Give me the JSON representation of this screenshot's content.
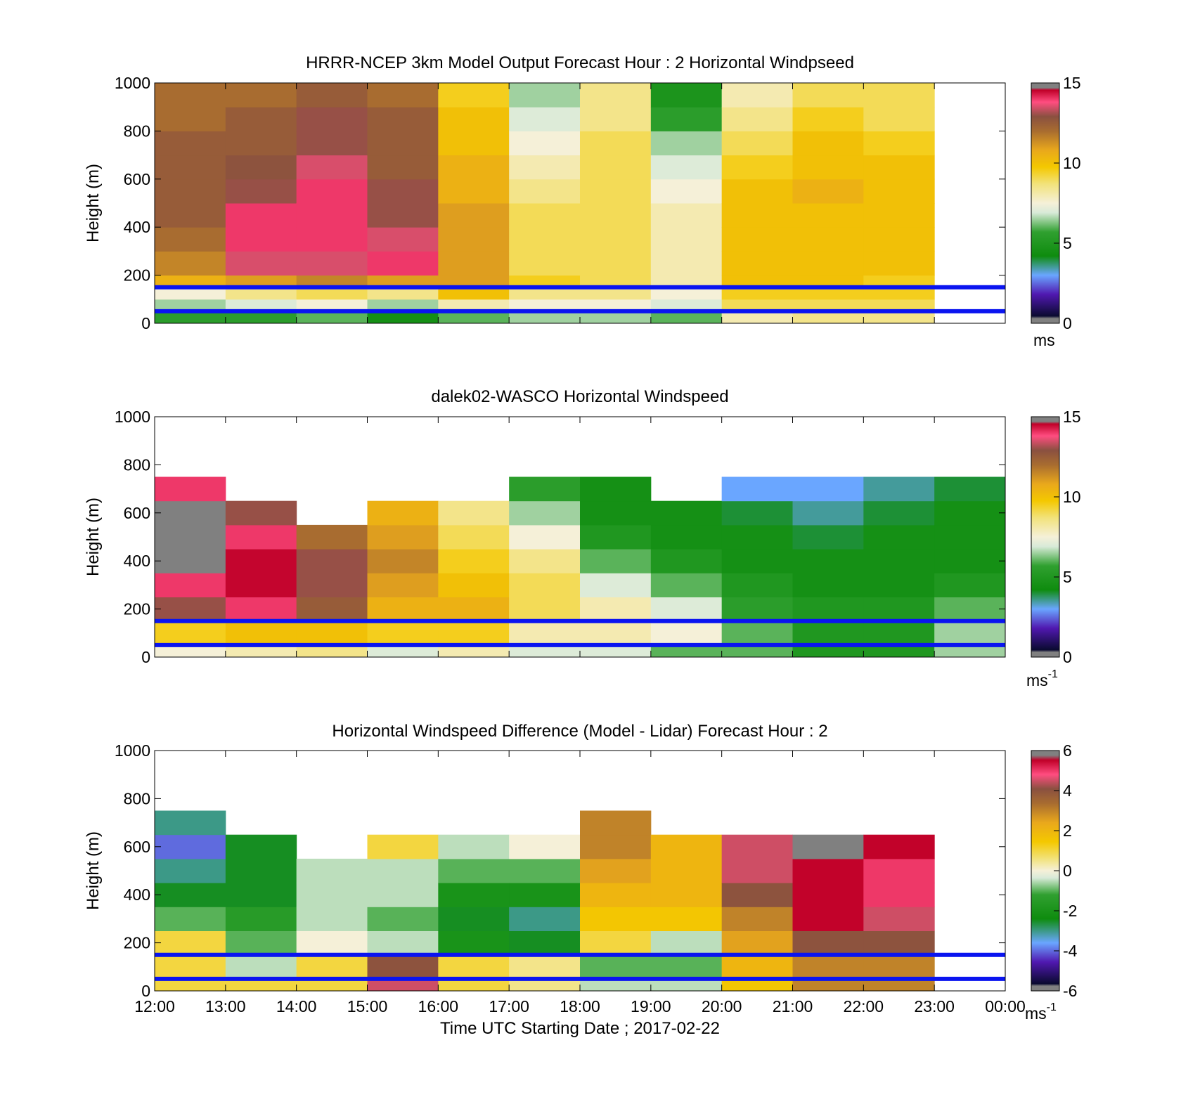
{
  "figure": {
    "xlabel": "Time UTC  Starting Date ; 2017-02-22",
    "x_ticks": [
      "12:00",
      "13:00",
      "14:00",
      "15:00",
      "16:00",
      "17:00",
      "18:00",
      "19:00",
      "20:00",
      "21:00",
      "22:00",
      "23:00",
      "00:00"
    ]
  },
  "chart_data": [
    {
      "type": "heatmap",
      "title": "HRRR-NCEP 3km Model Output   Forecast Hour : 2 Horizontal Windpseed",
      "ylabel": "Height (m)",
      "xlabel": "",
      "ylim": [
        0,
        1000
      ],
      "y_ticks": [
        "0",
        "200",
        "400",
        "600",
        "800",
        "1000"
      ],
      "colorbar": {
        "ticks": [
          "0",
          "5",
          "10",
          "15"
        ],
        "range": [
          0,
          15
        ],
        "unit": "ms",
        "unit_sup": ""
      },
      "reference_lines_m": [
        150,
        50
      ],
      "reference_line_color": "#0a14f0",
      "hours": [
        "12:00",
        "13:00",
        "14:00",
        "15:00",
        "16:00",
        "17:00",
        "18:00",
        "19:00",
        "20:00",
        "21:00",
        "22:00"
      ],
      "heights_m": [
        50,
        100,
        150,
        200,
        300,
        400,
        500,
        600,
        700,
        800,
        900,
        1000
      ],
      "values": [
        [
          5.5,
          6.5,
          7.5,
          10.5,
          11.5,
          12.0,
          12.5,
          12.5,
          12.5,
          12.5,
          12.0,
          12.0
        ],
        [
          5.5,
          7.0,
          8.5,
          11.0,
          13.5,
          14.0,
          14.0,
          13.0,
          12.8,
          12.5,
          12.5,
          12.0
        ],
        [
          6.0,
          7.5,
          9.0,
          11.5,
          13.5,
          14.0,
          14.0,
          14.0,
          13.5,
          13.0,
          13.0,
          12.5
        ],
        [
          4.5,
          6.5,
          8.5,
          11.0,
          14.0,
          13.5,
          13.0,
          13.0,
          12.5,
          12.5,
          12.5,
          12.0
        ],
        [
          6.0,
          8.0,
          10.0,
          11.0,
          11.0,
          11.0,
          11.0,
          10.5,
          10.5,
          10.0,
          10.0,
          9.5
        ],
        [
          6.5,
          7.5,
          8.5,
          9.5,
          9.0,
          9.0,
          9.0,
          8.5,
          8.0,
          7.5,
          7.0,
          6.5
        ],
        [
          6.5,
          7.5,
          8.5,
          9.0,
          9.0,
          9.0,
          9.0,
          9.0,
          9.0,
          9.0,
          8.5,
          8.5
        ],
        [
          6.0,
          7.0,
          7.5,
          8.0,
          8.0,
          8.0,
          8.0,
          7.5,
          7.0,
          6.5,
          5.5,
          4.8
        ],
        [
          8.0,
          9.0,
          9.5,
          10.0,
          10.0,
          10.0,
          10.0,
          10.0,
          9.5,
          9.0,
          8.5,
          8.0
        ],
        [
          8.5,
          9.0,
          9.5,
          10.0,
          10.0,
          10.0,
          10.0,
          10.5,
          10.0,
          10.0,
          9.5,
          9.0
        ],
        [
          8.5,
          9.0,
          9.5,
          9.5,
          10.0,
          10.0,
          10.0,
          10.0,
          10.0,
          9.5,
          9.0,
          9.0
        ]
      ]
    },
    {
      "type": "heatmap",
      "title": "dalek02-WASCO  Horizontal Windspeed",
      "ylabel": "Height (m)",
      "xlabel": "",
      "ylim": [
        0,
        1000
      ],
      "y_ticks": [
        "0",
        "200",
        "400",
        "600",
        "800",
        "1000"
      ],
      "colorbar": {
        "ticks": [
          "0",
          "5",
          "10",
          "15"
        ],
        "range": [
          0,
          15
        ],
        "unit": "ms",
        "unit_sup": "-1"
      },
      "reference_lines_m": [
        150,
        50
      ],
      "reference_line_color": "#0a14f0",
      "hours": [
        "12:00",
        "13:00",
        "14:00",
        "15:00",
        "16:00",
        "17:00",
        "18:00",
        "19:00",
        "20:00",
        "21:00",
        "22:00",
        "23:00"
      ],
      "heights_m": [
        50,
        150,
        250,
        350,
        450,
        550,
        650,
        750
      ],
      "values": [
        [
          7.5,
          9.5,
          13.0,
          14.0,
          15.5,
          16.0,
          16.0,
          14.0
        ],
        [
          8.0,
          10.0,
          14.0,
          14.5,
          14.5,
          14.0,
          13.0,
          null
        ],
        [
          8.5,
          10.0,
          12.5,
          13.0,
          13.0,
          12.0,
          null,
          null
        ],
        [
          7.0,
          9.5,
          10.5,
          11.0,
          11.5,
          11.0,
          10.5,
          null
        ],
        [
          8.0,
          9.5,
          10.5,
          10.0,
          9.5,
          9.0,
          8.5,
          null
        ],
        [
          7.0,
          8.0,
          9.0,
          9.0,
          8.5,
          7.5,
          6.5,
          5.5
        ],
        [
          7.0,
          8.0,
          8.0,
          7.0,
          6.0,
          5.0,
          4.5,
          4.5
        ],
        [
          6.0,
          7.5,
          7.0,
          6.0,
          5.0,
          4.5,
          4.5,
          null
        ],
        [
          6.0,
          6.0,
          5.5,
          5.0,
          4.5,
          4.5,
          4.0,
          3.0
        ],
        [
          5.0,
          5.0,
          5.0,
          4.5,
          4.5,
          4.0,
          3.5,
          3.0
        ],
        [
          5.0,
          5.0,
          5.0,
          4.5,
          4.5,
          4.5,
          4.0,
          3.5
        ],
        [
          6.5,
          6.5,
          6.0,
          5.0,
          4.5,
          4.5,
          4.5,
          4.0
        ]
      ]
    },
    {
      "type": "heatmap",
      "title": "Horizontal Windspeed Difference (Model - Lidar) Forecast Hour : 2",
      "ylabel": "Height (m)",
      "xlabel": "Time UTC  Starting Date ; 2017-02-22",
      "ylim": [
        0,
        1000
      ],
      "y_ticks": [
        "0",
        "200",
        "400",
        "600",
        "800",
        "1000"
      ],
      "colorbar": {
        "ticks": [
          "-6",
          "-4",
          "-2",
          "0",
          "2",
          "4",
          "6"
        ],
        "range": [
          -6,
          6
        ],
        "unit": "ms",
        "unit_sup": "-1"
      },
      "reference_lines_m": [
        150,
        50
      ],
      "reference_line_color": "#0a14f0",
      "hours": [
        "12:00",
        "13:00",
        "14:00",
        "15:00",
        "16:00",
        "17:00",
        "18:00",
        "19:00",
        "20:00",
        "21:00",
        "22:00"
      ],
      "heights_m": [
        50,
        150,
        250,
        350,
        450,
        550,
        650,
        750
      ],
      "values": [
        [
          1.0,
          1.0,
          1.0,
          -1.0,
          -2.5,
          -3.0,
          -4.0,
          -3.0
        ],
        [
          1.0,
          -0.5,
          -1.0,
          -1.5,
          -2.5,
          -2.5,
          -2.5,
          null
        ],
        [
          1.0,
          1.0,
          0.0,
          -0.5,
          -0.5,
          -0.5,
          null,
          null
        ],
        [
          4.5,
          4.0,
          -0.5,
          -1.0,
          -0.5,
          -0.5,
          1.0,
          null
        ],
        [
          1.0,
          1.0,
          -2.0,
          -2.5,
          -2.0,
          -1.0,
          -0.5,
          null
        ],
        [
          0.5,
          0.5,
          -2.5,
          -3.0,
          -2.0,
          -1.0,
          0.0,
          null
        ],
        [
          -0.5,
          -1.0,
          1.0,
          1.5,
          2.0,
          2.5,
          3.0,
          3.0
        ],
        [
          -0.5,
          -1.0,
          -0.5,
          1.5,
          2.0,
          2.0,
          2.0,
          null
        ],
        [
          1.5,
          2.0,
          2.5,
          3.0,
          4.0,
          4.5,
          4.5,
          null
        ],
        [
          3.0,
          3.0,
          4.0,
          5.5,
          5.5,
          5.5,
          6.0,
          null
        ],
        [
          3.0,
          3.0,
          4.0,
          4.5,
          5.0,
          5.0,
          5.5,
          null
        ]
      ]
    }
  ]
}
